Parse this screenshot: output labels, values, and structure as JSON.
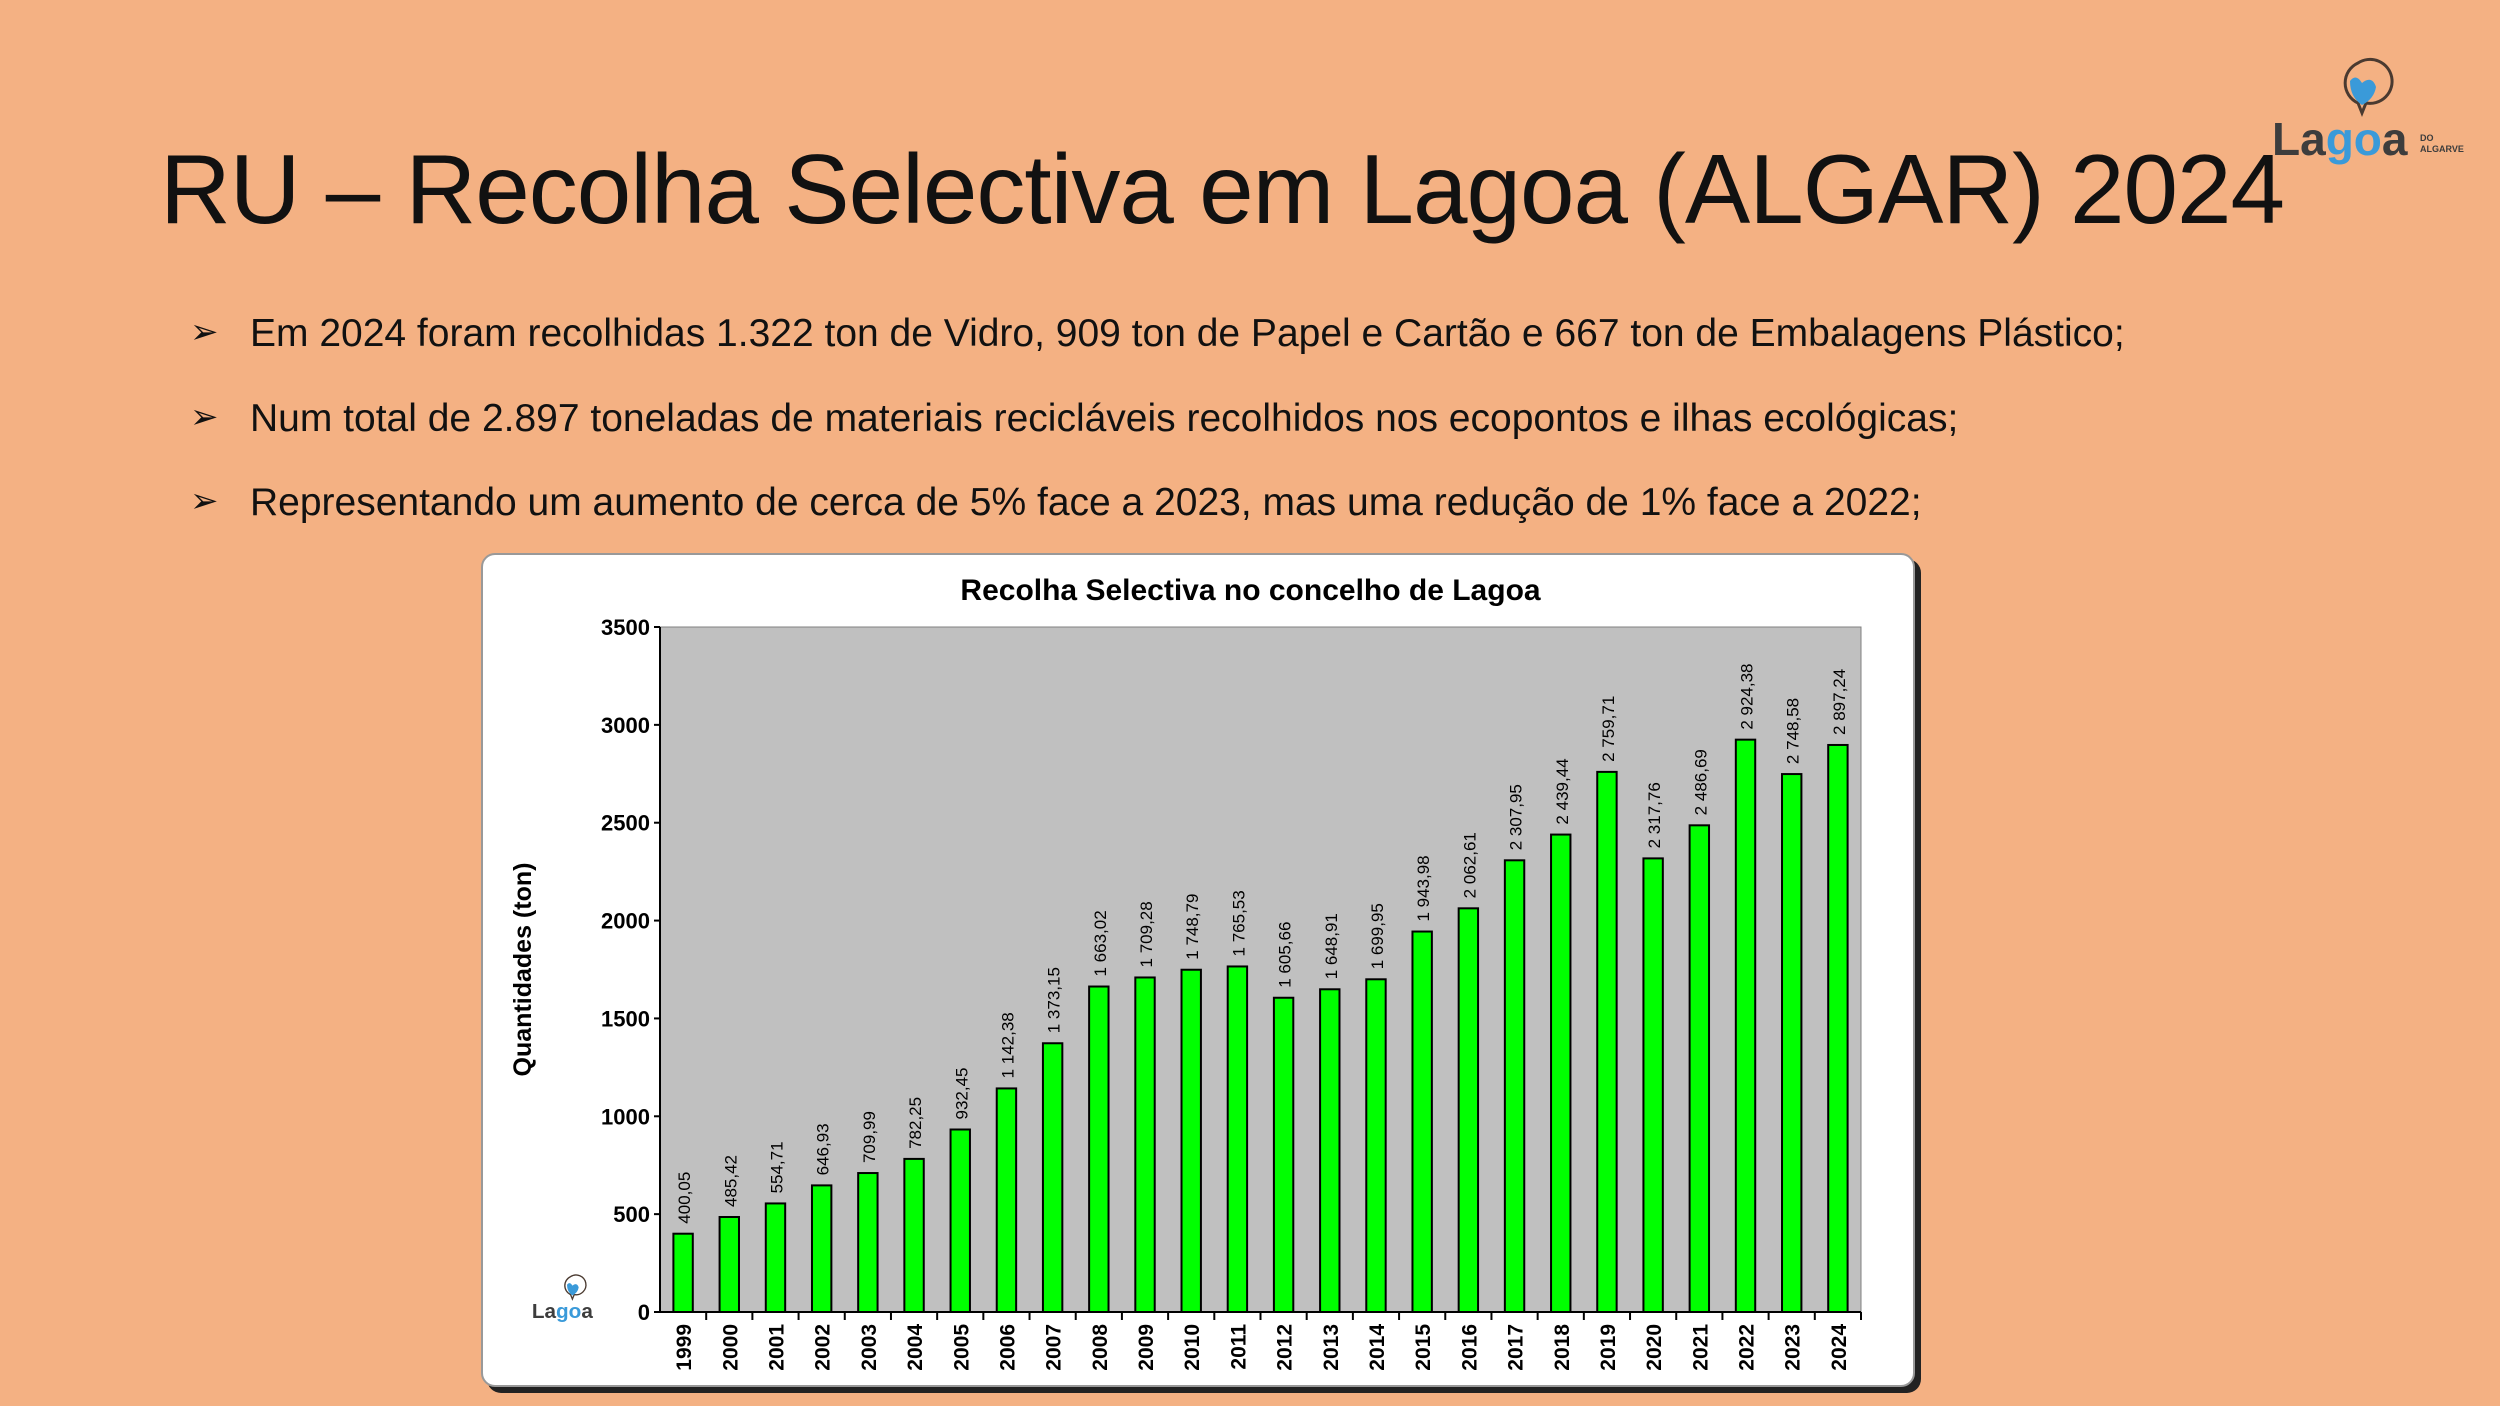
{
  "slide": {
    "title": "RU – Recolha Selectiva em Lagoa (ALGAR) 2024",
    "bullets": [
      "Em 2024 foram recolhidas 1.322 ton de Vidro, 909 ton de Papel e Cartão e 667 ton de Embalagens Plástico;",
      "Num total de 2.897 toneladas de materiais recicláveis recolhidos nos ecopontos e ilhas ecológicas;",
      "Representando um aumento de cerca de 5% face a 2023, mas uma redução de 1% face a 2022;"
    ],
    "bullet_icon": "arrow-right-icon",
    "logo": {
      "text": "Lagoa",
      "subtext": "DO ALGARVE"
    }
  },
  "colors": {
    "background": "#f4b183",
    "bar": "#00ff00",
    "plot_bg": "#c0c0c0",
    "logo_dark": "#3d3d3d",
    "logo_blue": "#3a9ad9"
  },
  "chart_data": {
    "type": "bar",
    "title": "Recolha Selectiva no concelho de Lagoa",
    "xlabel": "",
    "ylabel": "Quantidades (ton)",
    "ylim": [
      0,
      3500
    ],
    "yticks": [
      0,
      500,
      1000,
      1500,
      2000,
      2500,
      3000,
      3500
    ],
    "grid": false,
    "categories": [
      "1999",
      "2000",
      "2001",
      "2002",
      "2003",
      "2004",
      "2005",
      "2006",
      "2007",
      "2008",
      "2009",
      "2010",
      "2011",
      "2012",
      "2013",
      "2014",
      "2015",
      "2016",
      "2017",
      "2018",
      "2019",
      "2020",
      "2021",
      "2022",
      "2023",
      "2024"
    ],
    "values": [
      400.05,
      485.42,
      554.71,
      646.93,
      709.99,
      782.25,
      932.45,
      1142.38,
      1373.15,
      1663.02,
      1709.28,
      1748.79,
      1765.53,
      1605.66,
      1648.91,
      1699.95,
      1943.98,
      2062.61,
      2307.95,
      2439.44,
      2759.71,
      2317.76,
      2486.69,
      2924.38,
      2748.58,
      2897.24
    ],
    "data_labels": [
      "400,05",
      "485,42",
      "554,71",
      "646,93",
      "709,99",
      "782,25",
      "932,45",
      "1 142,38",
      "1 373,15",
      "1 663,02",
      "1 709,28",
      "1 748,79",
      "1 765,53",
      "1 605,66",
      "1 648,91",
      "1 699,95",
      "1 943,98",
      "2 062,61",
      "2 307,95",
      "2 439,44",
      "2 759,71",
      "2 317,76",
      "2 486,69",
      "2 924,38",
      "2 748,58",
      "2 897,24"
    ]
  }
}
